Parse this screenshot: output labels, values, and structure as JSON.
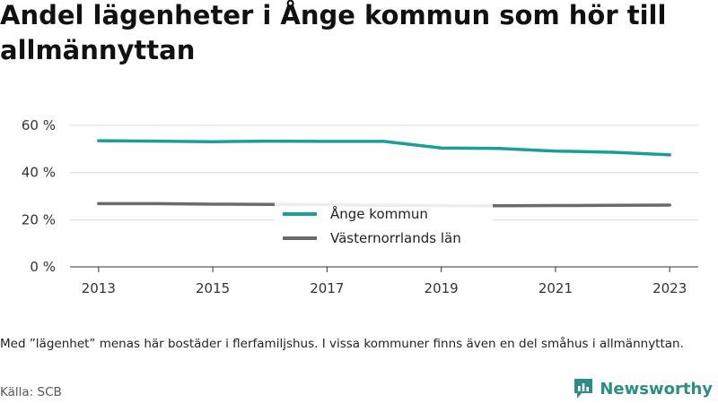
{
  "title": "Andel lägenheter i Ånge kommun som hör till allmännyttan",
  "note": "Med ”lägenhet” menas här bostäder i flerfamiljshus. I vissa kommuner finns även en del småhus i allmännyttan.",
  "source": "Källa: SCB",
  "brand": "Newsworthy",
  "chart_data": {
    "type": "line",
    "x": [
      2013,
      2014,
      2015,
      2016,
      2017,
      2018,
      2019,
      2020,
      2021,
      2022,
      2023
    ],
    "xlim": [
      2012.5,
      2023.5
    ],
    "xticks": [
      "2013",
      "2015",
      "2017",
      "2019",
      "2021",
      "2023"
    ],
    "ylim": [
      0,
      60
    ],
    "yticks": [
      "0 %",
      "20 %",
      "40 %",
      "60 %"
    ],
    "grid": true,
    "legend_position": "center",
    "series": [
      {
        "name": "Ånge kommun",
        "color": "#17a09a",
        "values": [
          53.5,
          53.3,
          53.1,
          53.3,
          53.2,
          53.2,
          50.4,
          50.2,
          49.1,
          48.6,
          47.5
        ]
      },
      {
        "name": "Västernorrlands län",
        "color": "#6b6a70",
        "values": [
          26.8,
          26.8,
          26.6,
          26.5,
          26.4,
          26.1,
          26.0,
          25.9,
          26.0,
          26.1,
          26.2
        ]
      }
    ]
  }
}
